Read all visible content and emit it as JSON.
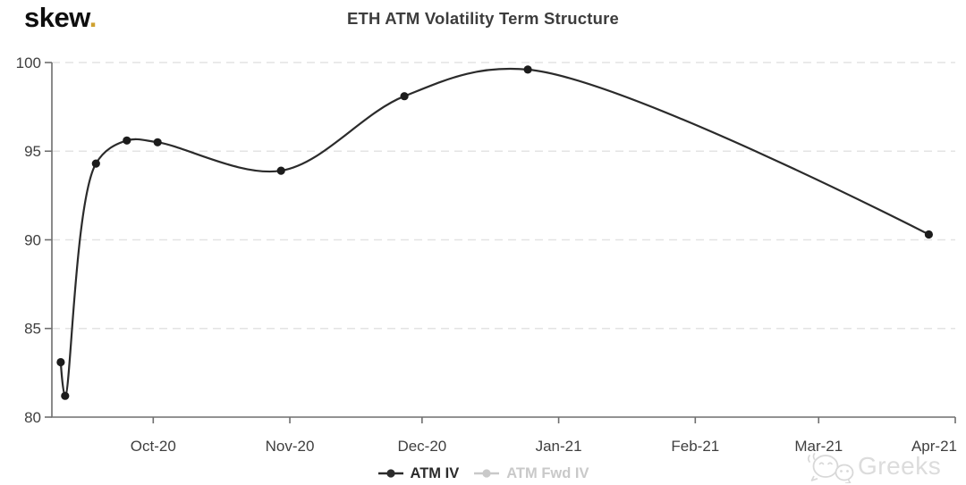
{
  "logo": {
    "text": "skew",
    "dot": ".",
    "dot_color": "#cfa12f"
  },
  "header": {
    "title": "ETH ATM Volatility Term Structure"
  },
  "watermark": {
    "text": "Greeks",
    "icon": "wechat-icon"
  },
  "legend": {
    "position": "bottom-center",
    "items": [
      {
        "label": "ATM IV",
        "color": "#2b2b2b",
        "active": true
      },
      {
        "label": "ATM Fwd IV",
        "color": "#c9c9c9",
        "active": false
      }
    ]
  },
  "chart_data": {
    "type": "line",
    "title": "ETH ATM Volatility Term Structure",
    "xlabel": "",
    "ylabel": "",
    "ylim": [
      80,
      100
    ],
    "y_ticks": [
      80,
      85,
      90,
      95,
      100
    ],
    "x_range": [
      "2020-09-08",
      "2021-04-01"
    ],
    "x_ticks": [
      {
        "date": "2020-10-01",
        "label": "Oct-20",
        "align": "middle"
      },
      {
        "date": "2020-11-01",
        "label": "Nov-20",
        "align": "middle"
      },
      {
        "date": "2020-12-01",
        "label": "Dec-20",
        "align": "middle"
      },
      {
        "date": "2021-01-01",
        "label": "Jan-21",
        "align": "middle"
      },
      {
        "date": "2021-02-01",
        "label": "Feb-21",
        "align": "middle"
      },
      {
        "date": "2021-03-01",
        "label": "Mar-21",
        "align": "middle"
      },
      {
        "date": "2021-04-01",
        "label": "Apr-21",
        "align": "end"
      }
    ],
    "grid": "horizontal-dashed",
    "grid_color": "#e3e3e3",
    "axis_color": "#6e6e6e",
    "legend_position": "bottom-center",
    "series": [
      {
        "name": "ATM IV",
        "color": "#2b2b2b",
        "marker": "circle",
        "marker_color": "#1c1c1c",
        "visible": true,
        "points": [
          {
            "date": "2020-09-10",
            "value": 83.1
          },
          {
            "date": "2020-09-11",
            "value": 81.2
          },
          {
            "date": "2020-09-18",
            "value": 94.3
          },
          {
            "date": "2020-09-25",
            "value": 95.6
          },
          {
            "date": "2020-10-02",
            "value": 95.5
          },
          {
            "date": "2020-10-30",
            "value": 93.9
          },
          {
            "date": "2020-11-27",
            "value": 98.1
          },
          {
            "date": "2020-12-25",
            "value": 99.6
          },
          {
            "date": "2021-03-26",
            "value": 90.3
          }
        ]
      },
      {
        "name": "ATM Fwd IV",
        "color": "#c9c9c9",
        "marker": "circle",
        "marker_color": "#c9c9c9",
        "visible": false,
        "points": []
      }
    ]
  }
}
